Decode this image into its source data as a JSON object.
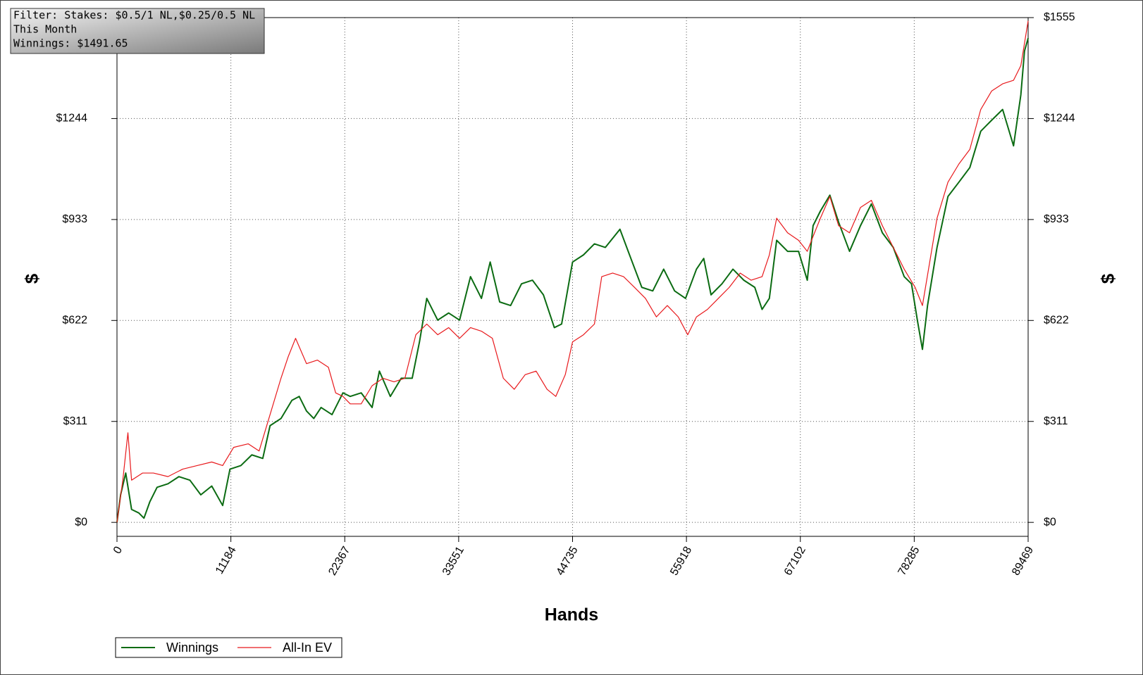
{
  "chart_data": {
    "type": "line",
    "xlabel": "Hands",
    "ylabel": "$",
    "y2label": "$",
    "annotations": [
      "Filter: Stakes: $0.5/1 NL,$0.25/0.5 NL",
      "This Month",
      "Winnings: $1491.65"
    ],
    "legend": "bottom-left",
    "grid": true,
    "xlim": [
      0,
      89469
    ],
    "xticks": [
      0,
      11184,
      22367,
      33551,
      44735,
      55918,
      67102,
      78285,
      89469
    ],
    "ylim": [
      -43,
      1555
    ],
    "yticks": [
      {
        "value": 0,
        "label": "$0"
      },
      {
        "value": 311,
        "label": "$311"
      },
      {
        "value": 622,
        "label": "$622"
      },
      {
        "value": 933,
        "label": "$933"
      },
      {
        "value": 1244,
        "label": "$1244"
      },
      {
        "value": 1555,
        "label": "$1555"
      }
    ],
    "y2lim": [
      -43,
      1555
    ],
    "y2ticks": [
      {
        "value": 0,
        "label": "$0"
      },
      {
        "value": 311,
        "label": "$311"
      },
      {
        "value": 622,
        "label": "$622"
      },
      {
        "value": 933,
        "label": "$933"
      },
      {
        "value": 1244,
        "label": "$1244"
      },
      {
        "value": 1555,
        "label": "$1555"
      }
    ],
    "series": [
      {
        "name": "Winnings",
        "color": "#0b6b12",
        "x": [
          0,
          358,
          859,
          1432,
          2147,
          2648,
          3221,
          3937,
          5010,
          6084,
          7158,
          8231,
          9305,
          10378,
          11094,
          12168,
          13241,
          14315,
          15031,
          16104,
          17178,
          17894,
          18610,
          19325,
          20041,
          21115,
          22188,
          22904,
          23978,
          25051,
          25767,
          26841,
          27914,
          28988,
          29704,
          30419,
          31493,
          32567,
          33640,
          34714,
          35788,
          36646,
          37577,
          38651,
          39724,
          40798,
          41871,
          42945,
          43661,
          44734,
          45808,
          46882,
          47955,
          49387,
          50461,
          51534,
          52608,
          53681,
          54755,
          55828,
          56901,
          57616,
          58332,
          59407,
          60481,
          61554,
          62628,
          63344,
          64058,
          64775,
          65849,
          66923,
          67782,
          68352,
          69070,
          69999,
          70857,
          71932,
          73006,
          74078,
          75154,
          76227,
          77300,
          78016,
          78590,
          79090,
          79591,
          80522,
          81596,
          82669,
          83743,
          84816,
          85890,
          86964,
          88037,
          88753,
          89111,
          89469
        ],
        "values": [
          0,
          85,
          152,
          40,
          29,
          13,
          63,
          108,
          119,
          141,
          130,
          85,
          112,
          52,
          164,
          175,
          208,
          197,
          298,
          320,
          376,
          388,
          343,
          320,
          354,
          332,
          399,
          388,
          399,
          354,
          466,
          388,
          444,
          444,
          556,
          690,
          623,
          645,
          623,
          757,
          690,
          802,
          679,
          668,
          735,
          746,
          701,
          600,
          611,
          802,
          824,
          858,
          847,
          903,
          813,
          724,
          713,
          780,
          713,
          690,
          780,
          813,
          701,
          735,
          780,
          746,
          724,
          656,
          690,
          869,
          835,
          835,
          746,
          914,
          959,
          1008,
          925,
          835,
          914,
          981,
          892,
          847,
          757,
          735,
          623,
          533,
          668,
          847,
          1004,
          1048,
          1093,
          1205,
          1239,
          1272,
          1160,
          1317,
          1452,
          1491.65
        ]
      },
      {
        "name": "All-In EV",
        "color": "#e8191c",
        "x": [
          0,
          573,
          1074,
          1432,
          2505,
          3579,
          5010,
          6442,
          7873,
          9305,
          10378,
          11452,
          12884,
          13957,
          15031,
          16104,
          16820,
          17536,
          18610,
          19683,
          20757,
          21473,
          22188,
          22904,
          23978,
          25051,
          26125,
          27199,
          28272,
          29346,
          30419,
          31493,
          32567,
          33640,
          34714,
          35788,
          36861,
          37935,
          39008,
          40082,
          41156,
          42229,
          43088,
          44019,
          44734,
          45808,
          46882,
          47597,
          48671,
          49745,
          50818,
          51892,
          52966,
          54039,
          55113,
          56043,
          56901,
          57976,
          59049,
          60123,
          61196,
          62270,
          63344,
          64058,
          64775,
          65849,
          66923,
          67782,
          68352,
          69070,
          69999,
          70857,
          71932,
          73006,
          74078,
          75154,
          76227,
          77300,
          78373,
          79090,
          79806,
          80522,
          81596,
          82669,
          83743,
          84816,
          85890,
          86964,
          88037,
          88753,
          89469
        ],
        "values": [
          0,
          130,
          276,
          130,
          152,
          152,
          141,
          164,
          175,
          186,
          175,
          231,
          242,
          220,
          332,
          444,
          511,
          567,
          489,
          500,
          478,
          399,
          388,
          365,
          365,
          421,
          444,
          433,
          444,
          578,
          611,
          578,
          600,
          567,
          600,
          589,
          567,
          444,
          410,
          455,
          466,
          410,
          388,
          455,
          556,
          578,
          611,
          757,
          768,
          757,
          724,
          690,
          633,
          668,
          633,
          578,
          633,
          656,
          690,
          724,
          768,
          746,
          757,
          824,
          937,
          892,
          869,
          835,
          881,
          937,
          1004,
          914,
          892,
          970,
          992,
          914,
          847,
          780,
          724,
          668,
          802,
          937,
          1048,
          1104,
          1149,
          1272,
          1329,
          1351,
          1362,
          1407,
          1545
        ]
      }
    ]
  }
}
